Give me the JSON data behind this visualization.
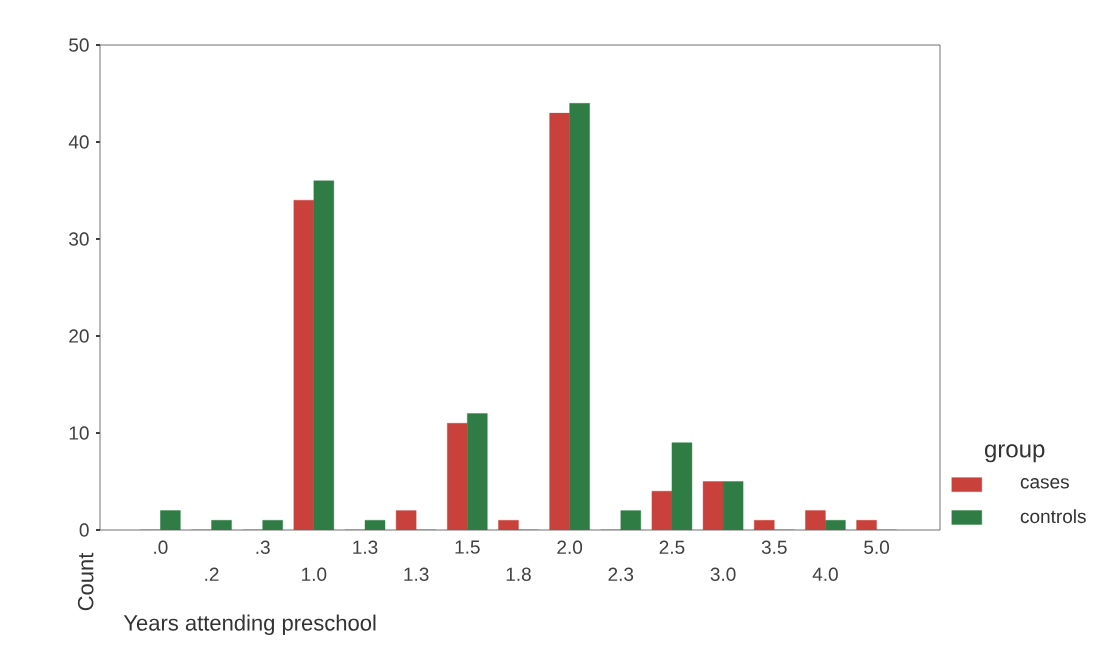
{
  "chart_data": {
    "type": "bar",
    "xlabel": "Years attending preschool",
    "ylabel": "Count",
    "legend_title": "group",
    "categories": [
      ".0",
      ".2",
      ".3",
      "1.0",
      "1.3",
      "1.3",
      "1.5",
      "1.8",
      "2.0",
      "2.3",
      "2.5",
      "3.0",
      "3.5",
      "4.0",
      "5.0"
    ],
    "series": [
      {
        "name": "cases",
        "color": "#c8413a",
        "values": [
          0,
          0,
          0,
          34,
          0,
          2,
          11,
          1,
          43,
          0,
          4,
          5,
          1,
          2,
          1
        ]
      },
      {
        "name": "controls",
        "color": "#2f7d45",
        "values": [
          2,
          1,
          1,
          36,
          1,
          0,
          12,
          0,
          44,
          2,
          9,
          5,
          0,
          1,
          0
        ]
      }
    ],
    "ylim": [
      0,
      50
    ],
    "yticks": [
      0,
      10,
      20,
      30,
      40,
      50
    ],
    "grid": false,
    "legend": "right"
  }
}
